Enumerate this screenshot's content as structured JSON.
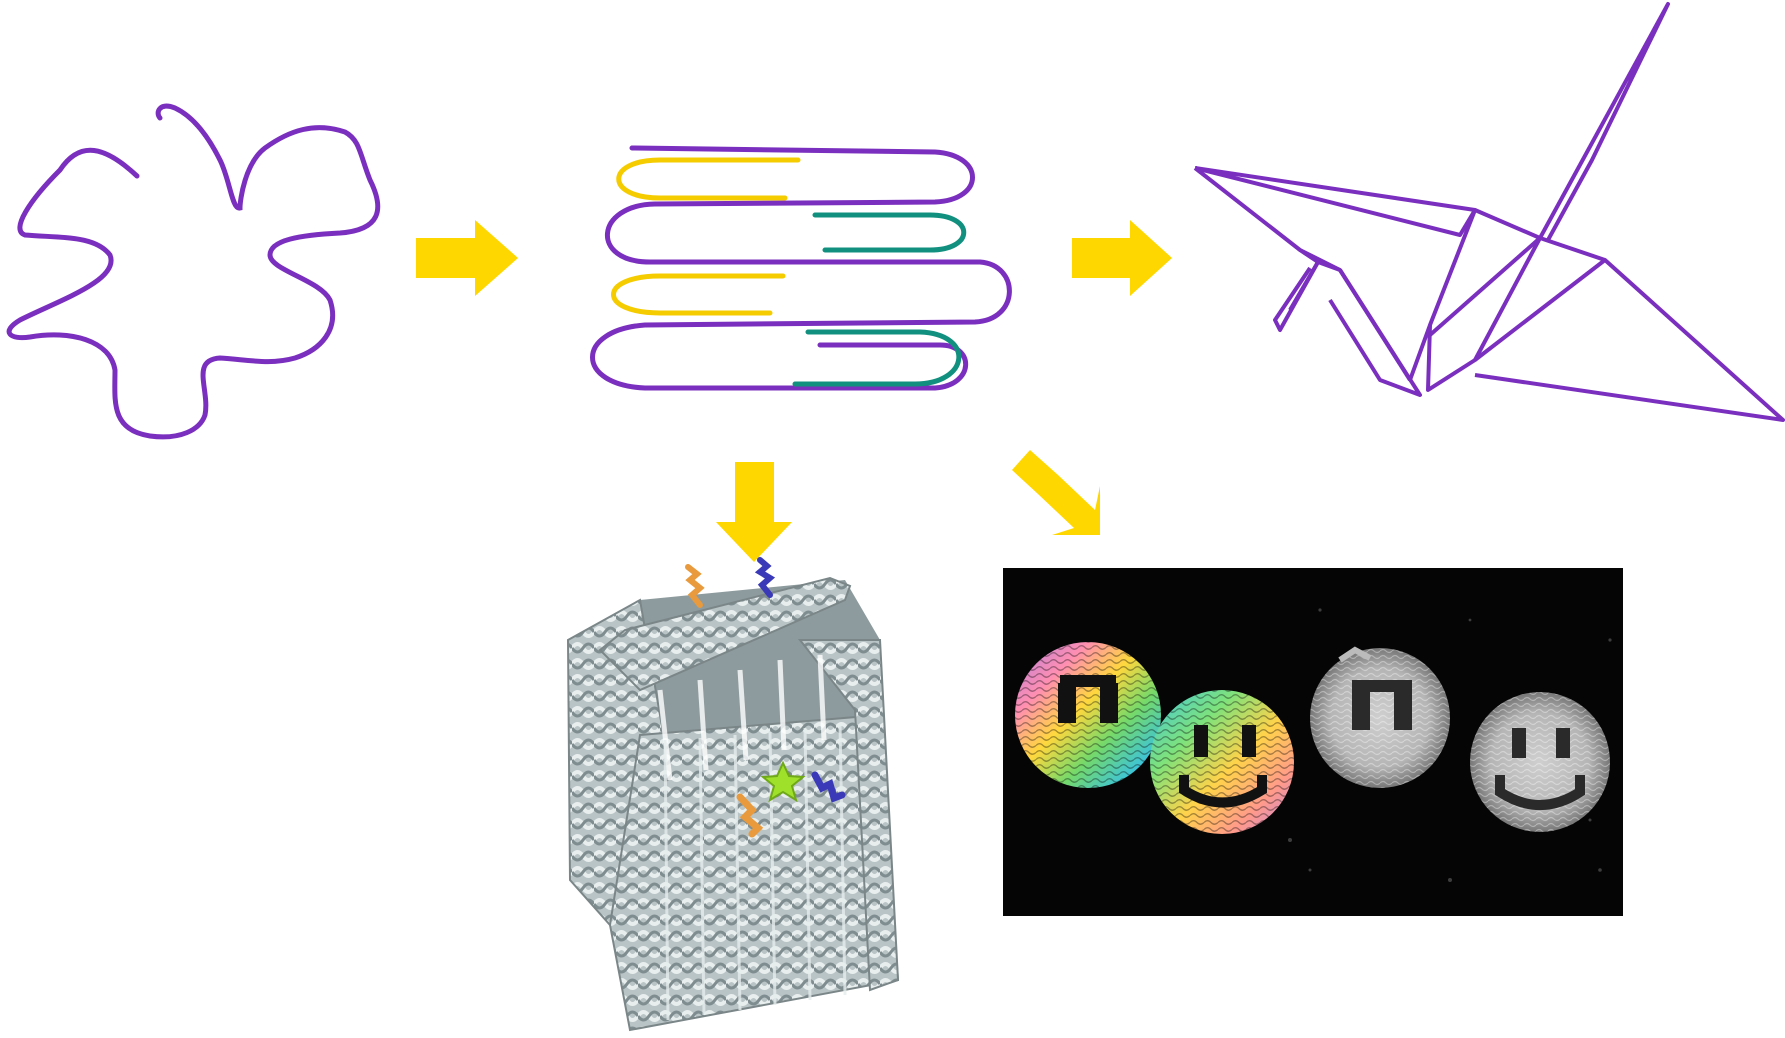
{
  "colors": {
    "background": "#ffffff",
    "strand_purple": "#7b2fbe",
    "staple_yellow": "#f5cc00",
    "staple_teal": "#12907f",
    "arrow_yellow": "#ffd700",
    "micro_background": "#050505",
    "box_gray": "#aab6b8"
  },
  "icons": [
    "random-coil-scaffold",
    "folded-scaffold-with-staples",
    "origami-crane",
    "dna-origami-box",
    "smiley-face-origami-micrograph"
  ]
}
